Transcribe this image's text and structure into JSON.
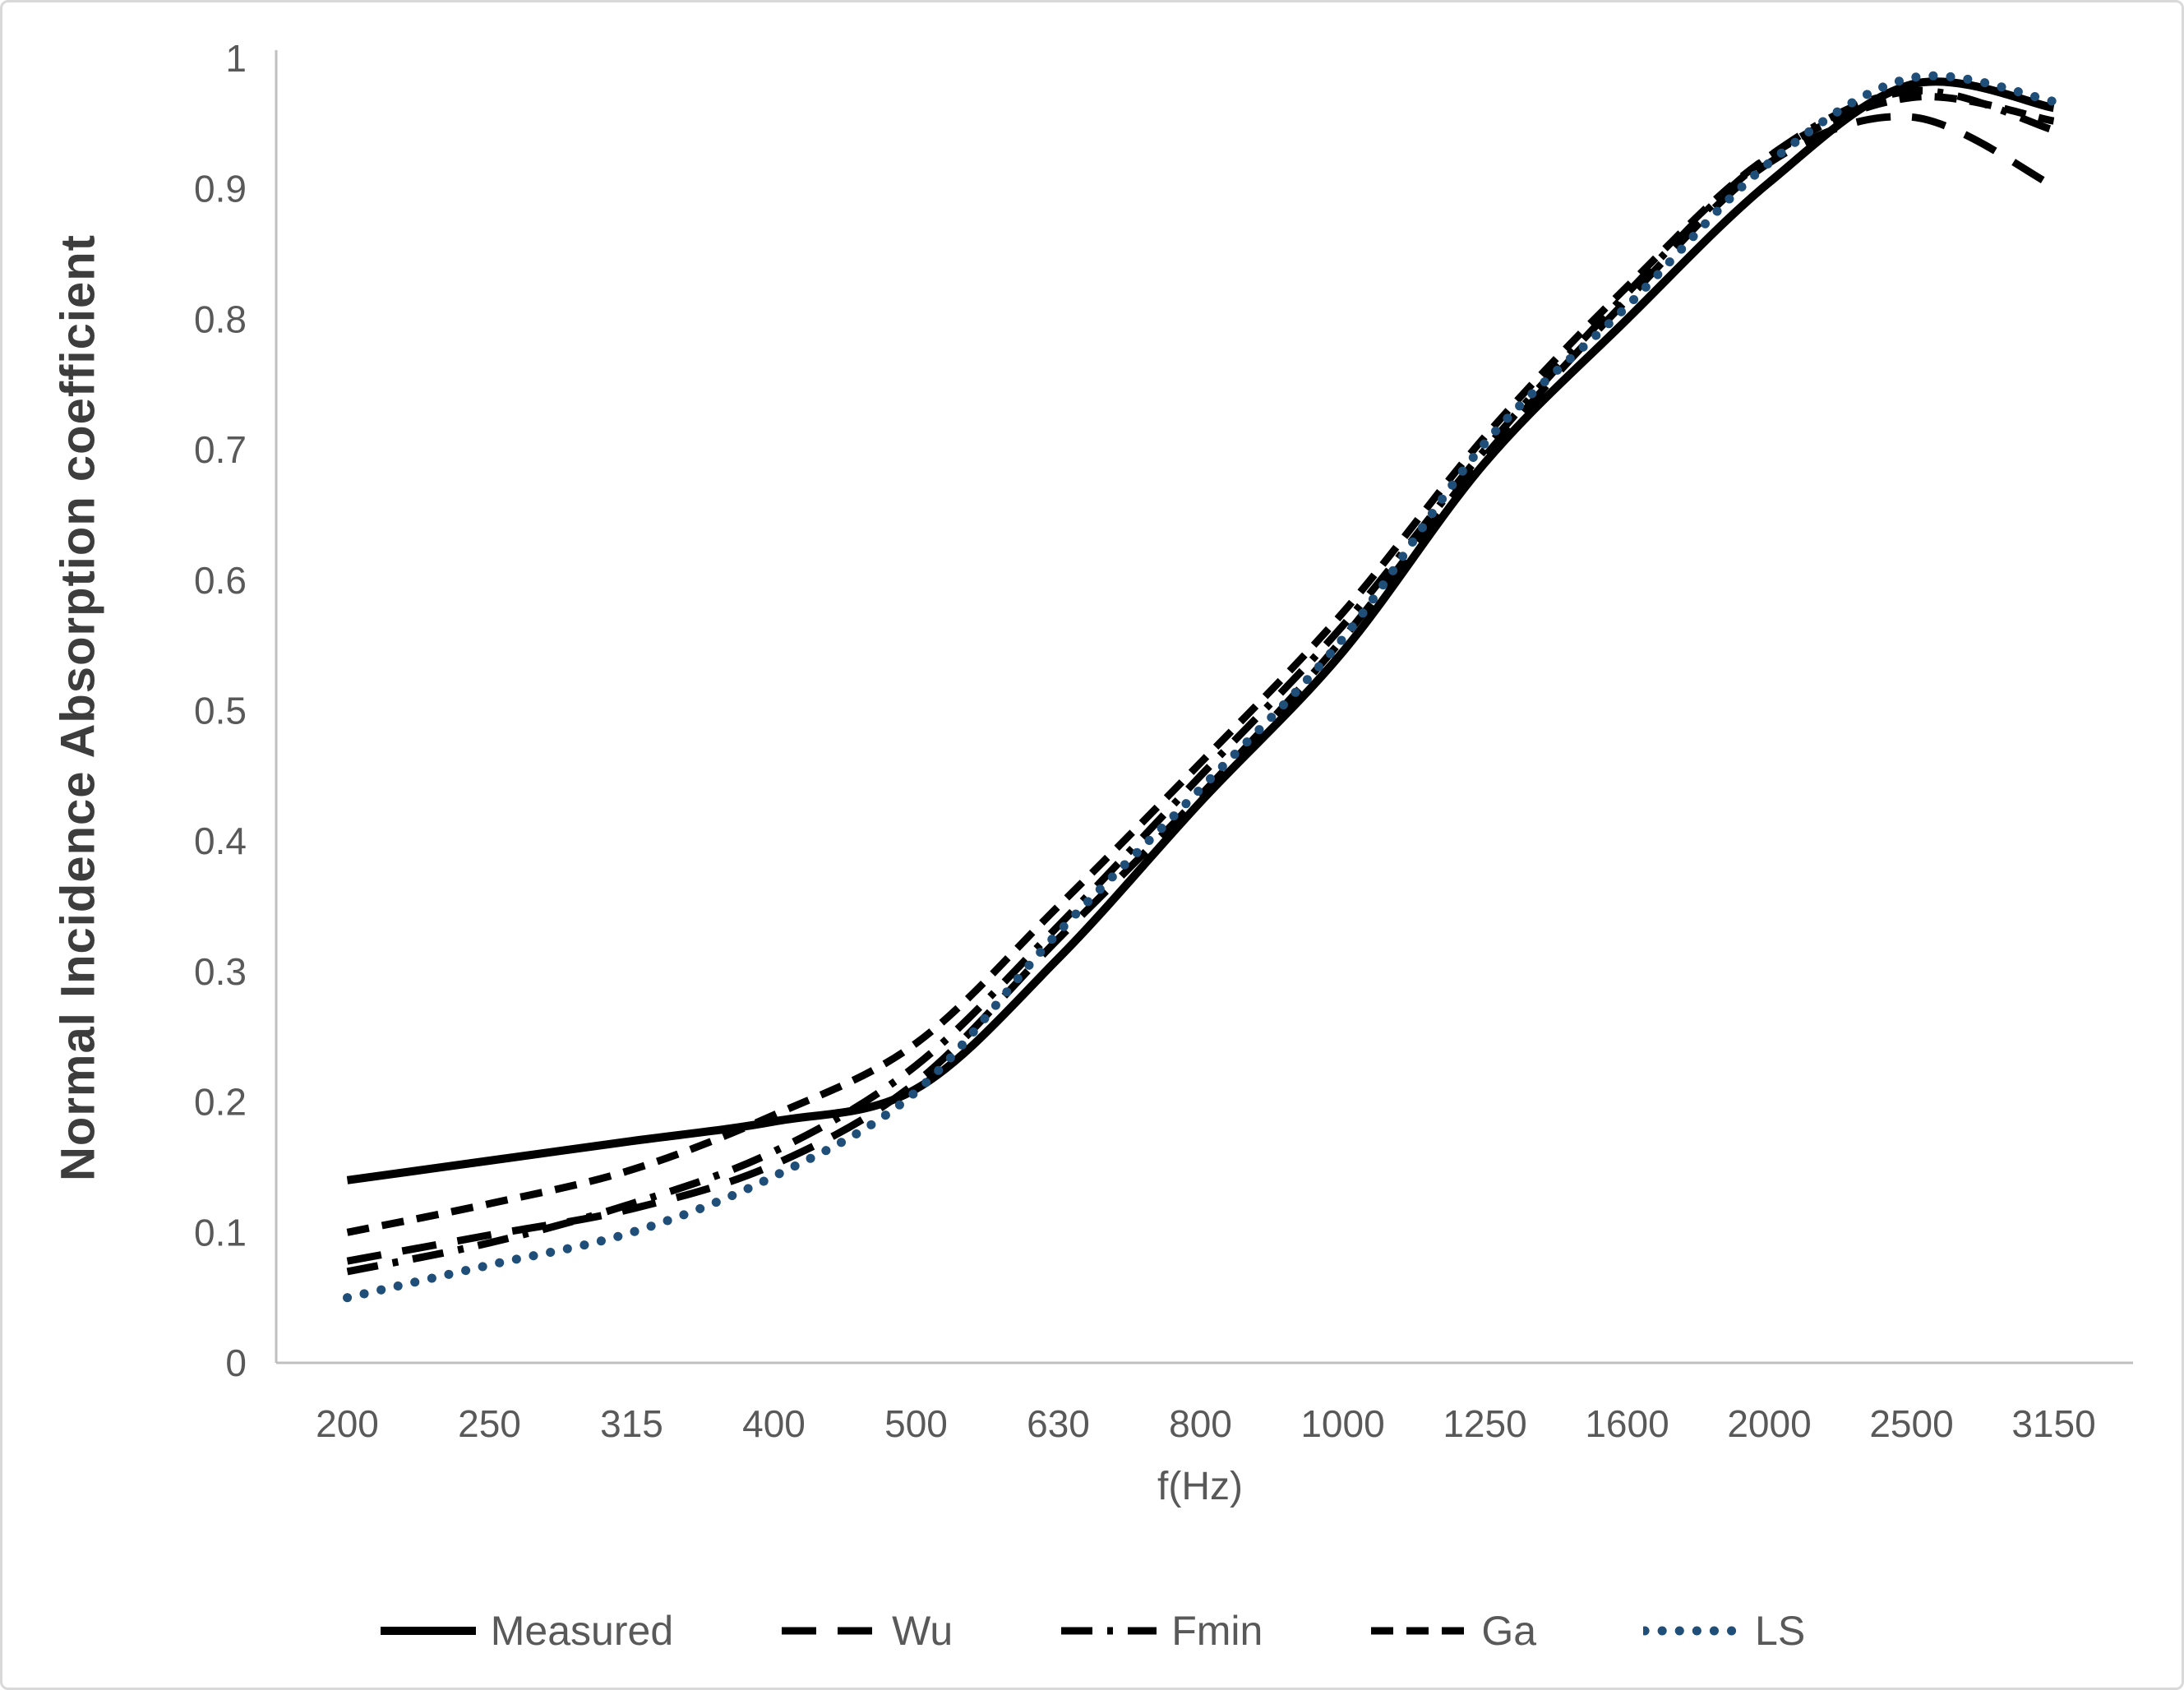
{
  "figure": {
    "background": "#ffffff",
    "border_color": "#d9d9d9",
    "axis_line_color": "#bfbfbf",
    "tick_label_color": "#595959",
    "y_title_color": "#3d3d3d",
    "series_black": "#000000",
    "series_blue": "#1F4E79"
  },
  "chart_data": {
    "type": "line",
    "title": "",
    "xlabel": "f(Hz)",
    "ylabel": "Normal Incidence Absorption coefficient",
    "categories": [
      "200",
      "250",
      "315",
      "400",
      "500",
      "630",
      "800",
      "1000",
      "1250",
      "1600",
      "2000",
      "2500",
      "3150"
    ],
    "ylim": [
      0,
      1
    ],
    "y_tick_labels": [
      "0",
      "0.1",
      "0.2",
      "0.3",
      "0.4",
      "0.5",
      "0.6",
      "0.7",
      "0.8",
      "0.9",
      "1"
    ],
    "grid": false,
    "legend_position": "bottom",
    "series": [
      {
        "name": "Measured",
        "style": "solid",
        "color": "#000000",
        "values": [
          0.14,
          0.155,
          0.17,
          0.185,
          0.21,
          0.31,
          0.43,
          0.545,
          0.69,
          0.8,
          0.905,
          0.98,
          0.962
        ]
      },
      {
        "name": "Wu",
        "style": "long-dash",
        "color": "#000000",
        "values": [
          0.078,
          0.098,
          0.118,
          0.152,
          0.215,
          0.325,
          0.435,
          0.555,
          0.695,
          0.815,
          0.92,
          0.955,
          0.902
        ]
      },
      {
        "name": "Fmin",
        "style": "dash-dot",
        "color": "#000000",
        "values": [
          0.07,
          0.092,
          0.122,
          0.162,
          0.228,
          0.335,
          0.45,
          0.565,
          0.7,
          0.82,
          0.925,
          0.975,
          0.945
        ]
      },
      {
        "name": "Ga",
        "style": "dash",
        "color": "#000000",
        "values": [
          0.1,
          0.122,
          0.148,
          0.19,
          0.245,
          0.35,
          0.46,
          0.575,
          0.71,
          0.825,
          0.925,
          0.97,
          0.952
        ]
      },
      {
        "name": "LS",
        "style": "dot",
        "color": "#1F4E79",
        "values": [
          0.05,
          0.075,
          0.1,
          0.143,
          0.208,
          0.33,
          0.44,
          0.555,
          0.705,
          0.81,
          0.92,
          0.985,
          0.967
        ]
      }
    ]
  }
}
